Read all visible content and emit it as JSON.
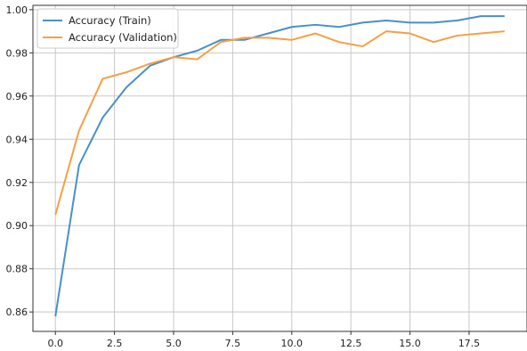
{
  "chart_data": {
    "type": "line",
    "title": "",
    "xlabel": "",
    "ylabel": "",
    "xlim": [
      -0.95,
      19.95
    ],
    "ylim": [
      0.851,
      1.002
    ],
    "xticks": [
      0.0,
      2.5,
      5.0,
      7.5,
      10.0,
      12.5,
      15.0,
      17.5
    ],
    "xtick_labels": [
      "0.0",
      "2.5",
      "5.0",
      "7.5",
      "10.0",
      "12.5",
      "15.0",
      "17.5"
    ],
    "yticks": [
      0.86,
      0.88,
      0.9,
      0.92,
      0.94,
      0.96,
      0.98,
      1.0
    ],
    "ytick_labels": [
      "0.86",
      "0.88",
      "0.90",
      "0.92",
      "0.94",
      "0.96",
      "0.98",
      "1.00"
    ],
    "grid": true,
    "legend_position": "top-left",
    "x": [
      0,
      1,
      2,
      3,
      4,
      5,
      6,
      7,
      8,
      9,
      10,
      11,
      12,
      13,
      14,
      15,
      16,
      17,
      18,
      19
    ],
    "series": [
      {
        "name": "Accuracy (Train)",
        "color": "#4a8fc7",
        "values": [
          0.858,
          0.928,
          0.95,
          0.964,
          0.974,
          0.978,
          0.981,
          0.986,
          0.986,
          0.989,
          0.992,
          0.993,
          0.992,
          0.994,
          0.995,
          0.994,
          0.994,
          0.995,
          0.997,
          0.997
        ]
      },
      {
        "name": "Accuracy (Validation)",
        "color": "#f5a044",
        "values": [
          0.905,
          0.944,
          0.968,
          0.971,
          0.975,
          0.978,
          0.977,
          0.985,
          0.987,
          0.987,
          0.986,
          0.989,
          0.985,
          0.983,
          0.99,
          0.989,
          0.985,
          0.988,
          0.989,
          0.99
        ]
      }
    ]
  }
}
